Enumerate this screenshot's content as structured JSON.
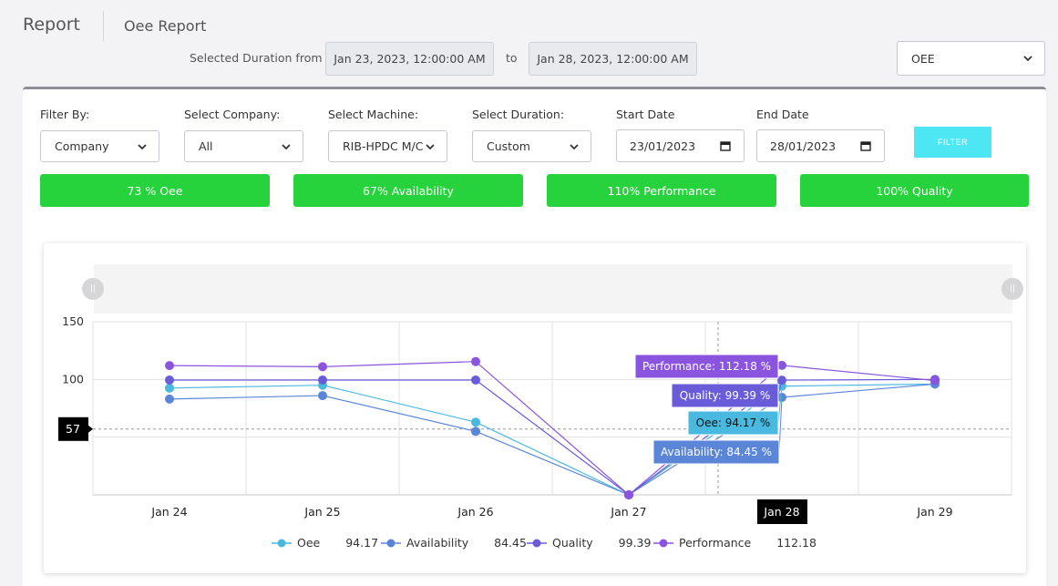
{
  "header": {
    "title": "Report",
    "subtitle": "Oee Report"
  },
  "duration": {
    "label": "Selected Duration from",
    "from": "Jan 23, 2023, 12:00:00 AM",
    "to_label": "to",
    "to": "Jan 28, 2023, 12:00:00 AM"
  },
  "metric_select": {
    "value": "OEE"
  },
  "filters": {
    "filter_by": {
      "label": "Filter By:",
      "value": "Company"
    },
    "company": {
      "label": "Select Company:",
      "value": "All"
    },
    "machine": {
      "label": "Select Machine:",
      "value": "RIB-HPDC M/C"
    },
    "duration": {
      "label": "Select Duration:",
      "value": "Custom"
    },
    "start_date": {
      "label": "Start Date",
      "value": "23/01/2023"
    },
    "end_date": {
      "label": "End Date",
      "value": "28/01/2023"
    },
    "button_label": "FILTER"
  },
  "kpis": {
    "oee": "73 % Oee",
    "availability": "67% Availability",
    "performance": "110% Performance",
    "quality": "100% Quality"
  },
  "colors": {
    "kpi_green": "#26d33c",
    "oee": "#4ab9df",
    "availability": "#5b86d8",
    "quality": "#6a5cd8",
    "performance": "#8b54de",
    "filter_button": "#4de6f3"
  },
  "chart_data": {
    "type": "line",
    "categories": [
      "Jan 24",
      "Jan 25",
      "Jan 26",
      "Jan 27",
      "Jan 28",
      "Jan 29"
    ],
    "ylim": [
      0,
      150
    ],
    "yticks": [
      "150",
      "100"
    ],
    "grid": true,
    "crosshair": {
      "y_label": "57",
      "x_label": "Jan 28"
    },
    "series": [
      {
        "key": "oee",
        "name": "Oee",
        "color": "#4ab9df",
        "values": [
          92.5,
          95,
          63,
          0,
          94.17,
          96
        ]
      },
      {
        "key": "availability",
        "name": "Availability",
        "color": "#5b86d8",
        "values": [
          83,
          86,
          55,
          0,
          84.45,
          96
        ]
      },
      {
        "key": "quality",
        "name": "Quality",
        "color": "#6a5cd8",
        "values": [
          99.5,
          99.5,
          99.5,
          0,
          99.39,
          100
        ]
      },
      {
        "key": "performance",
        "name": "Performance",
        "color": "#8b54de",
        "values": [
          112,
          111,
          115.5,
          0,
          112.18,
          99
        ]
      }
    ],
    "tooltips": [
      {
        "series": "performance",
        "text": "Performance: 112.18 %"
      },
      {
        "series": "quality",
        "text": "Quality: 99.39 %"
      },
      {
        "series": "oee",
        "text": "Oee: 94.17 %"
      },
      {
        "series": "availability",
        "text": "Availability: 84.45 %"
      }
    ],
    "legend": {
      "placement": "bottom",
      "items": [
        {
          "series": "oee",
          "label": "Oee",
          "value": "94.17"
        },
        {
          "series": "availability",
          "label": "Availability",
          "value": "84.45"
        },
        {
          "series": "quality",
          "label": "Quality",
          "value": "99.39"
        },
        {
          "series": "performance",
          "label": "Performance",
          "value": "112.18"
        }
      ]
    }
  }
}
